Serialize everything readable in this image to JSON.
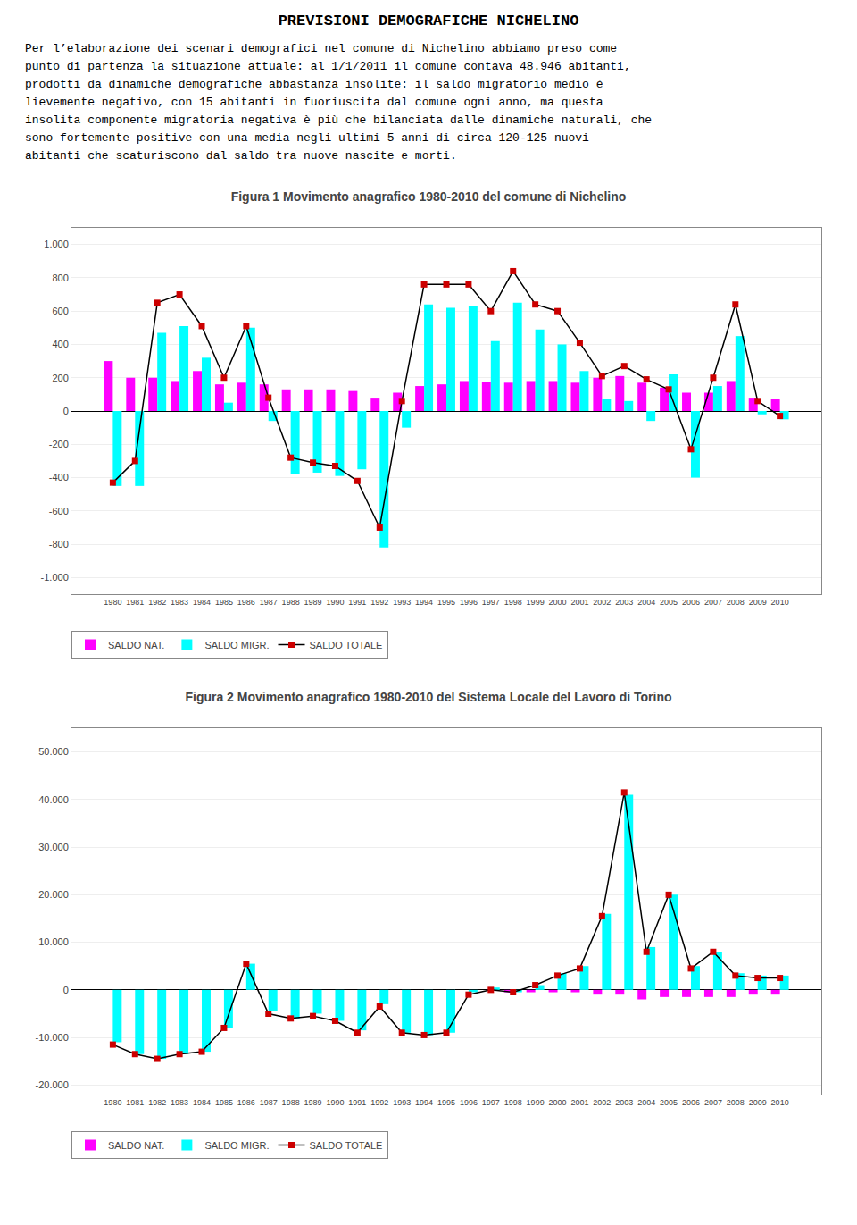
{
  "title": "PREVISIONI DEMOGRAFICHE NICHELINO",
  "annotations": [
    "Per l’elaborazione dei scenari demografici nel comune di Nichelino abbiamo preso come",
    "punto di partenza la situazione attuale: al 1/1/2011 il comune contava 48.946 abitanti,",
    "prodotti da dinamiche demografiche abbastanza insolite: il saldo migratorio medio è",
    "lievemente negativo, con 15 abitanti in fuoriuscita dal comune ogni anno, ma questa",
    "insolita componente migratoria negativa è più che bilanciata dalle dinamiche naturali, che",
    "sono fortemente positive con una media negli ultimi 5 anni di circa 120-125 nuovi",
    "abitanti che scaturiscono dal saldo tra nuove nascite e morti."
  ],
  "chart_data": [
    {
      "type": "bar",
      "title": "Figura 1 Movimento anagrafico 1980-2010 del comune di Nichelino",
      "categories": [
        1980,
        1981,
        1982,
        1983,
        1984,
        1985,
        1986,
        1987,
        1988,
        1989,
        1990,
        1991,
        1992,
        1993,
        1994,
        1995,
        1996,
        1997,
        1998,
        1999,
        2000,
        2001,
        2002,
        2003,
        2004,
        2005,
        2006,
        2007,
        2008,
        2009,
        2010
      ],
      "series": [
        {
          "name": "SALDO NAT.",
          "type": "bar",
          "color": "#FF00FF",
          "values": [
            300,
            200,
            200,
            180,
            240,
            160,
            170,
            160,
            130,
            130,
            130,
            120,
            80,
            110,
            150,
            160,
            180,
            175,
            170,
            180,
            180,
            170,
            200,
            210,
            170,
            140,
            110,
            110,
            180,
            80,
            70
          ]
        },
        {
          "name": "SALDO MIGR.",
          "type": "bar",
          "color": "#00FFFF",
          "values": [
            -450,
            -450,
            470,
            510,
            320,
            50,
            500,
            -60,
            -380,
            -370,
            -390,
            -350,
            -820,
            -100,
            640,
            620,
            630,
            420,
            650,
            490,
            400,
            240,
            70,
            60,
            -60,
            220,
            -400,
            150,
            450,
            -20,
            -50
          ]
        },
        {
          "name": "SALDO TOTALE",
          "type": "line",
          "color": "#CC0000",
          "marker": "square",
          "values": [
            -430,
            -300,
            650,
            700,
            510,
            200,
            510,
            80,
            -280,
            -310,
            -330,
            -420,
            -700,
            60,
            760,
            760,
            760,
            600,
            840,
            640,
            600,
            410,
            210,
            270,
            190,
            130,
            -230,
            200,
            640,
            60,
            -30
          ]
        }
      ],
      "ylim": [
        -1100,
        1100
      ],
      "yticks": [
        {
          "value": -1000,
          "label": "-1.000"
        },
        -800,
        -600,
        -400,
        -200,
        0,
        200,
        400,
        600,
        800,
        {
          "value": 1000,
          "label": "1.000"
        }
      ],
      "grid": true,
      "legend": "lower left"
    },
    {
      "type": "bar",
      "title": "Figura 2 Movimento anagrafico 1980-2010 del Sistema Locale del Lavoro di Torino",
      "categories": [
        1980,
        1981,
        1982,
        1983,
        1984,
        1985,
        1986,
        1987,
        1988,
        1989,
        1990,
        1991,
        1992,
        1993,
        1994,
        1995,
        1996,
        1997,
        1998,
        1999,
        2000,
        2001,
        2002,
        2003,
        2004,
        2005,
        2006,
        2007,
        2008,
        2009,
        2010
      ],
      "series": [
        {
          "name": "SALDO NAT.",
          "type": "bar",
          "color": "#FF00FF",
          "values": [
            0,
            0,
            0,
            0,
            0,
            0,
            0,
            0,
            0,
            0,
            0,
            0,
            0,
            0,
            0,
            0,
            0,
            0,
            -500,
            -500,
            -500,
            -500,
            -1000,
            -1000,
            -2000,
            -1500,
            -1500,
            -1500,
            -1500,
            -1000,
            -1000
          ]
        },
        {
          "name": "SALDO MIGR.",
          "type": "bar",
          "color": "#00FFFF",
          "values": [
            -11000,
            -13500,
            -14500,
            -13500,
            -13000,
            -8000,
            5500,
            -4500,
            -6000,
            -5000,
            -6500,
            -8500,
            -3000,
            -9000,
            -9500,
            -9000,
            -500,
            500,
            -500,
            1000,
            3500,
            5000,
            16000,
            41000,
            9000,
            20000,
            5000,
            8000,
            3500,
            3000,
            3000
          ]
        },
        {
          "name": "SALDO TOTALE",
          "type": "line",
          "color": "#CC0000",
          "marker": "square",
          "values": [
            -11500,
            -13500,
            -14500,
            -13500,
            -13000,
            -8000,
            5500,
            -5000,
            -6000,
            -5500,
            -6500,
            -9000,
            -3500,
            -9000,
            -9500,
            -9000,
            -1000,
            0,
            -500,
            1000,
            3000,
            4500,
            15500,
            41500,
            8000,
            20000,
            4500,
            8000,
            3000,
            2500,
            2500
          ]
        }
      ],
      "ylim": [
        -22000,
        55000
      ],
      "yticks": [
        {
          "value": -20000,
          "label": "-20.000"
        },
        {
          "value": -10000,
          "label": "-10.000"
        },
        0,
        {
          "value": 10000,
          "label": "10.000"
        },
        {
          "value": 20000,
          "label": "20.000"
        },
        {
          "value": 30000,
          "label": "30.000"
        },
        {
          "value": 40000,
          "label": "40.000"
        },
        {
          "value": 50000,
          "label": "50.000"
        }
      ],
      "grid": true,
      "legend": "lower left"
    }
  ]
}
